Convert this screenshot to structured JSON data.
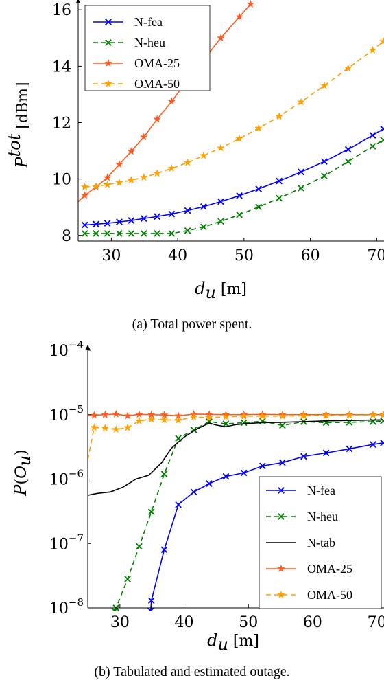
{
  "chart_data": [
    {
      "type": "line",
      "caption": "(a) Total power spent.",
      "xlabel": "d_u [m]",
      "ylabel": "P^tot [dBm]",
      "xlim": [
        25,
        71
      ],
      "ylim": [
        7.8,
        16.2
      ],
      "xticks": [
        30,
        40,
        50,
        60,
        70
      ],
      "yticks": [
        8,
        10,
        12,
        14,
        16
      ],
      "legend_position": "top-left",
      "series": [
        {
          "name": "N-fea",
          "color": "#0000ff",
          "style": "solid",
          "marker": "x",
          "x": [
            26,
            27.7,
            29.4,
            31.2,
            33,
            34.9,
            36.9,
            39.1,
            41.5,
            43.9,
            46.5,
            49.3,
            52.2,
            55.3,
            58.6,
            62.1,
            65.7,
            69.4,
            71
          ],
          "y": [
            8.37,
            8.4,
            8.43,
            8.48,
            8.53,
            8.6,
            8.67,
            8.76,
            8.88,
            9.02,
            9.2,
            9.41,
            9.65,
            9.93,
            10.25,
            10.62,
            11.05,
            11.55,
            11.78
          ]
        },
        {
          "name": "N-heu",
          "color": "#008000",
          "style": "dashed",
          "marker": "x",
          "x": [
            26,
            27.7,
            29.4,
            31.2,
            33,
            34.9,
            36.9,
            39.1,
            41.5,
            43.9,
            46.5,
            49.3,
            52.2,
            55.3,
            58.6,
            62.1,
            65.7,
            69.4,
            71
          ],
          "y": [
            8.07,
            8.07,
            8.07,
            8.07,
            8.07,
            8.07,
            8.07,
            8.07,
            8.17,
            8.3,
            8.5,
            8.73,
            9.01,
            9.32,
            9.68,
            10.11,
            10.62,
            11.16,
            11.38
          ]
        },
        {
          "name": "OMA-25",
          "color": "#ff5a1f",
          "style": "solid",
          "marker": "star",
          "x": [
            25,
            26,
            27.7,
            29.4,
            31.2,
            33,
            34.9,
            36.9,
            39.1,
            41.5,
            43.9,
            46.5,
            49.3,
            51
          ],
          "y": [
            9.2,
            9.42,
            9.72,
            10.05,
            10.52,
            10.98,
            11.49,
            12.12,
            12.75,
            13.52,
            14.22,
            15.0,
            15.75,
            16.2
          ]
        },
        {
          "name": "OMA-50",
          "color": "#ffa000",
          "style": "dashed",
          "marker": "star",
          "x": [
            26,
            27.7,
            29.4,
            31.2,
            33,
            34.9,
            36.9,
            39.1,
            41.5,
            43.9,
            46.5,
            49.3,
            52.2,
            55.3,
            58.6,
            62.1,
            65.7,
            69.4,
            71
          ],
          "y": [
            9.72,
            9.74,
            9.8,
            9.87,
            9.96,
            10.06,
            10.2,
            10.38,
            10.58,
            10.83,
            11.1,
            11.43,
            11.8,
            12.22,
            12.73,
            13.31,
            13.93,
            14.57,
            14.88
          ]
        }
      ]
    },
    {
      "type": "line",
      "caption": "(b) Tabulated and estimated outage.",
      "xlabel": "d_u [m]",
      "ylabel": "P(O_u)",
      "xlim": [
        25,
        71
      ],
      "ylim": [
        1e-08,
        0.0001
      ],
      "yscale": "log",
      "xticks": [
        30,
        40,
        50,
        60,
        70
      ],
      "yticks": [
        "10^-8",
        "10^-7",
        "10^-6",
        "10^-5",
        "10^-4"
      ],
      "legend_position": "bottom-right",
      "series": [
        {
          "name": "N-fea",
          "color": "#0000ff",
          "style": "solid",
          "marker": "x",
          "x": [
            34.8,
            34.9,
            36.9,
            39.1,
            41.5,
            43.9,
            46.5,
            49.3,
            52.2,
            55.3,
            58.6,
            62.1,
            65.7,
            69.4,
            71
          ],
          "y": [
            9e-09,
            1.3e-08,
            8e-08,
            4e-07,
            6.3e-07,
            8.5e-07,
            1.1e-06,
            1.25e-06,
            1.6e-06,
            1.8e-06,
            2.25e-06,
            2.55e-06,
            2.95e-06,
            3.45e-06,
            3.65e-06
          ]
        },
        {
          "name": "N-heu",
          "color": "#008000",
          "style": "dashed",
          "marker": "x",
          "x": [
            29.2,
            29.4,
            31.2,
            33,
            34.9,
            36.9,
            39.1,
            41.5,
            43.9,
            46.5,
            49.3,
            52.2,
            55.3,
            58.6,
            62.1,
            65.7,
            69.4,
            71
          ],
          "y": [
            9e-09,
            1e-08,
            2.8e-08,
            9e-08,
            3.1e-07,
            1.2e-06,
            4.3e-06,
            5.8e-06,
            7.8e-06,
            7.2e-06,
            7.5e-06,
            7.9e-06,
            6.8e-06,
            7.8e-06,
            7.5e-06,
            7.6e-06,
            7.8e-06,
            8e-06
          ]
        },
        {
          "name": "N-tab",
          "color": "#000000",
          "style": "solid",
          "marker": "none",
          "x": [
            25,
            26.5,
            28.5,
            30.5,
            32.5,
            34.5,
            36.5,
            38,
            40,
            42,
            43.9,
            45,
            46.5,
            48,
            50,
            52,
            55,
            58.6,
            62,
            65,
            68,
            71
          ],
          "y": [
            5.6e-07,
            6e-07,
            6.3e-07,
            7.5e-07,
            1e-06,
            1.15e-06,
            1.8e-06,
            3e-06,
            4.5e-06,
            6e-06,
            7.4e-06,
            6.9e-06,
            6.5e-06,
            7e-06,
            7.3e-06,
            7.5e-06,
            7.6e-06,
            7.8e-06,
            8e-06,
            8.1e-06,
            8.2e-06,
            8.3e-06
          ]
        },
        {
          "name": "OMA-25",
          "color": "#ff5a1f",
          "style": "solid",
          "marker": "star",
          "x": [
            25,
            26,
            27.7,
            29.4,
            31.2,
            33,
            34.9,
            36.9,
            39.1,
            41.5,
            43.9,
            46.5,
            49.3,
            52.2,
            55.3,
            58.6,
            62.1,
            65.7,
            69.4,
            71
          ],
          "y": [
            9.6e-06,
            9.8e-06,
            1e-05,
            1.02e-05,
            9.6e-06,
            1.01e-05,
            1e-05,
            9.9e-06,
            9.6e-06,
            1.02e-05,
            1.01e-05,
            1e-05,
            1e-05,
            1.01e-05,
            1e-05,
            1e-05,
            1e-05,
            1e-05,
            1e-05,
            1e-05
          ]
        },
        {
          "name": "OMA-50",
          "color": "#ffa000",
          "style": "dashed",
          "marker": "star",
          "x": [
            25,
            26,
            27.7,
            29.4,
            31.2,
            33,
            34.9,
            36.9,
            39.1,
            41.5,
            43.9,
            46.5,
            49.3,
            52.2,
            55.3,
            58.6,
            62.1,
            65.7,
            69.4,
            71
          ],
          "y": [
            2e-06,
            6.3e-06,
            6.2e-06,
            5.9e-06,
            6.3e-06,
            8e-06,
            8.5e-06,
            8.3e-06,
            8.2e-06,
            9.2e-06,
            9e-06,
            9.3e-06,
            9.5e-06,
            9.5e-06,
            9.5e-06,
            9.6e-06,
            9.7e-06,
            9.8e-06,
            9.9e-06,
            9.9e-06
          ]
        }
      ]
    }
  ]
}
